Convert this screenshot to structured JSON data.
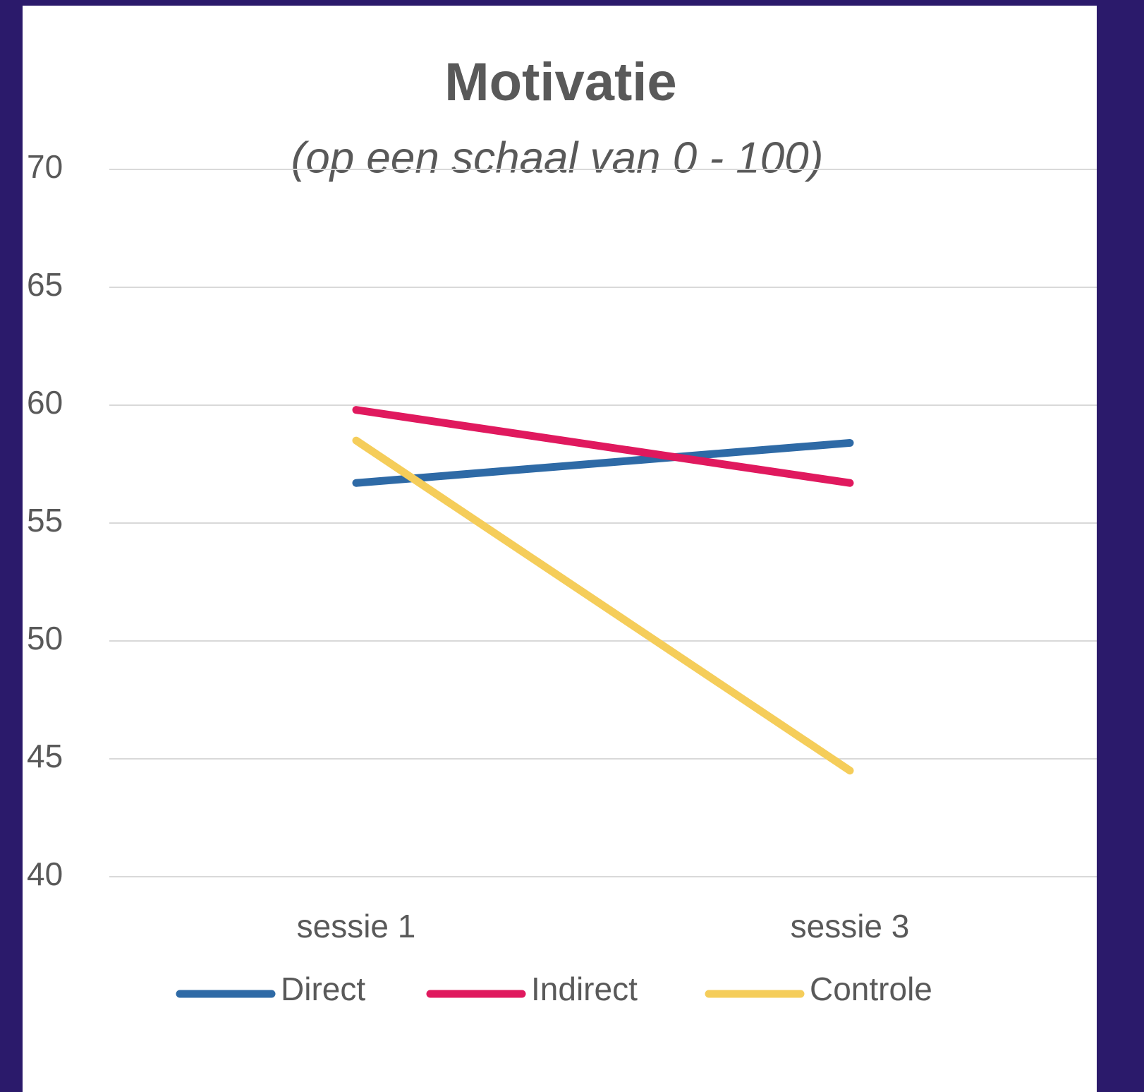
{
  "chart_data": {
    "type": "line",
    "title": "Motivatie",
    "subtitle": "(op een schaal van 0 - 100)",
    "categories": [
      "sessie 1",
      "sessie 3"
    ],
    "series": [
      {
        "name": "Direct",
        "color": "#2e6aa6",
        "values": [
          56.7,
          58.4
        ]
      },
      {
        "name": "Indirect",
        "color": "#e0195e",
        "values": [
          59.8,
          56.7
        ]
      },
      {
        "name": "Controle",
        "color": "#f5cd5a",
        "values": [
          58.5,
          44.5
        ]
      }
    ],
    "ylim": [
      40,
      70
    ],
    "yticks": [
      40,
      45,
      50,
      55,
      60,
      65,
      70
    ],
    "grid": true,
    "legend": "bottom"
  }
}
